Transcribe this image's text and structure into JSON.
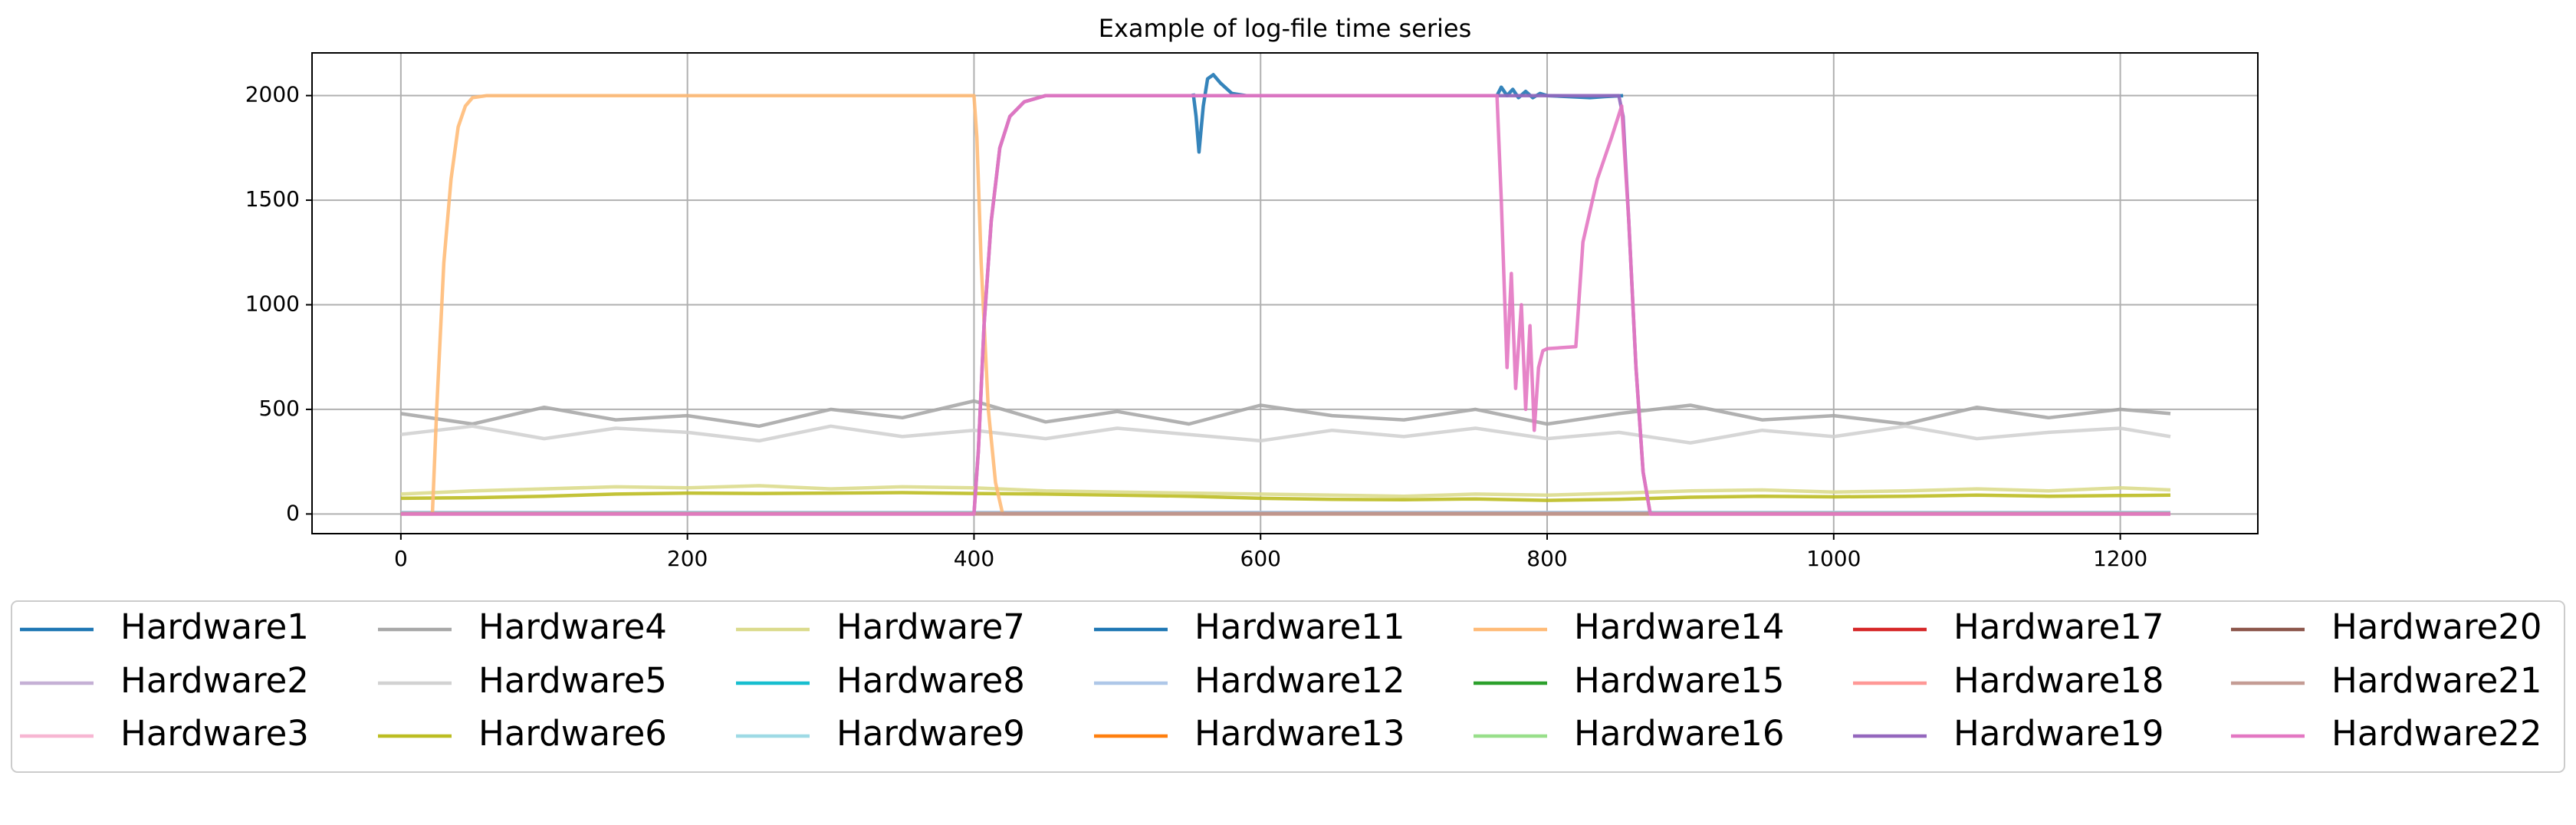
{
  "chart_data": {
    "type": "line",
    "title": "Example of log-file time series",
    "xlim": [
      -62,
      1296
    ],
    "ylim": [
      -94,
      2204
    ],
    "xticks": [
      0,
      200,
      400,
      600,
      800,
      1000,
      1200
    ],
    "yticks": [
      0,
      500,
      1000,
      1500,
      2000
    ],
    "grid": true,
    "legend": "bottom",
    "series": [
      {
        "name": "Hardware1",
        "color": "#1f77b4",
        "x": [
          0,
          1235
        ],
        "values": [
          2,
          2
        ]
      },
      {
        "name": "Hardware2",
        "color": "#c5b0d5",
        "x": [
          0,
          1235
        ],
        "values": [
          3,
          3
        ]
      },
      {
        "name": "Hardware3",
        "color": "#f7b6d2",
        "x": [
          0,
          1235
        ],
        "values": [
          4,
          4
        ]
      },
      {
        "name": "Hardware4",
        "color": "#a8a8a8",
        "x": [
          0,
          50,
          100,
          150,
          200,
          250,
          300,
          350,
          400,
          450,
          500,
          550,
          600,
          650,
          700,
          750,
          800,
          850,
          900,
          950,
          1000,
          1050,
          1100,
          1150,
          1200,
          1235
        ],
        "values": [
          480,
          430,
          510,
          450,
          470,
          420,
          500,
          460,
          540,
          440,
          490,
          430,
          520,
          470,
          450,
          500,
          430,
          480,
          520,
          450,
          470,
          430,
          510,
          460,
          500,
          480
        ]
      },
      {
        "name": "Hardware5",
        "color": "#d2d2d2",
        "x": [
          0,
          50,
          100,
          150,
          200,
          250,
          300,
          350,
          400,
          450,
          500,
          550,
          600,
          650,
          700,
          750,
          800,
          850,
          900,
          950,
          1000,
          1050,
          1100,
          1150,
          1200,
          1235
        ],
        "values": [
          380,
          420,
          360,
          410,
          390,
          350,
          420,
          370,
          400,
          360,
          410,
          380,
          350,
          400,
          370,
          410,
          360,
          390,
          340,
          400,
          370,
          420,
          360,
          390,
          410,
          370
        ]
      },
      {
        "name": "Hardware6",
        "color": "#bcbd22",
        "x": [
          0,
          50,
          100,
          150,
          200,
          250,
          300,
          350,
          400,
          450,
          500,
          550,
          600,
          650,
          700,
          750,
          800,
          850,
          900,
          950,
          1000,
          1050,
          1100,
          1150,
          1200,
          1235
        ],
        "values": [
          75,
          78,
          85,
          95,
          100,
          98,
          100,
          102,
          98,
          95,
          90,
          85,
          75,
          70,
          68,
          72,
          65,
          70,
          80,
          85,
          82,
          85,
          90,
          85,
          88,
          90
        ]
      },
      {
        "name": "Hardware7",
        "color": "#dbdb8d",
        "x": [
          0,
          50,
          100,
          150,
          200,
          250,
          300,
          350,
          400,
          450,
          500,
          550,
          600,
          650,
          700,
          750,
          800,
          850,
          900,
          950,
          1000,
          1050,
          1100,
          1150,
          1200,
          1235
        ],
        "values": [
          95,
          110,
          120,
          130,
          125,
          135,
          120,
          130,
          125,
          110,
          105,
          100,
          95,
          90,
          85,
          95,
          90,
          100,
          110,
          115,
          105,
          110,
          120,
          110,
          125,
          115
        ]
      },
      {
        "name": "Hardware8",
        "color": "#17becf",
        "x": [
          0,
          1235
        ],
        "values": [
          5,
          5
        ]
      },
      {
        "name": "Hardware9",
        "color": "#9edae5",
        "x": [
          0,
          1235
        ],
        "values": [
          6,
          6
        ]
      },
      {
        "name": "Hardware11",
        "color": "#1f77b4",
        "x": [
          553,
          555,
          557,
          560,
          563,
          567,
          572,
          580,
          590,
          765,
          768,
          772,
          776,
          780,
          785,
          790,
          795,
          800,
          830,
          840,
          853
        ],
        "values": [
          2010,
          1900,
          1730,
          1950,
          2080,
          2100,
          2060,
          2010,
          2000,
          2000,
          2040,
          2000,
          2030,
          1990,
          2020,
          1990,
          2010,
          2000,
          1990,
          1995,
          2000
        ]
      },
      {
        "name": "Hardware12",
        "color": "#aec7e8",
        "x": [
          0,
          1235
        ],
        "values": [
          7,
          7
        ]
      },
      {
        "name": "Hardware13",
        "color": "#ff7f0e",
        "x": [
          0,
          1235
        ],
        "values": [
          1,
          1
        ]
      },
      {
        "name": "Hardware14",
        "color": "#ffbb78",
        "x": [
          0,
          22,
          25,
          30,
          35,
          40,
          45,
          50,
          60,
          400,
          402,
          405,
          410,
          415,
          420,
          1235
        ],
        "values": [
          0,
          0,
          500,
          1200,
          1600,
          1850,
          1950,
          1990,
          2000,
          2000,
          1800,
          1200,
          500,
          150,
          0,
          0
        ]
      },
      {
        "name": "Hardware15",
        "color": "#2ca02c",
        "x": [
          0,
          1235
        ],
        "values": [
          1,
          1
        ]
      },
      {
        "name": "Hardware16",
        "color": "#98df8a",
        "x": [
          0,
          1235
        ],
        "values": [
          1,
          1
        ]
      },
      {
        "name": "Hardware17",
        "color": "#d62728",
        "x": [
          0,
          1235
        ],
        "values": [
          1,
          1
        ]
      },
      {
        "name": "Hardware18",
        "color": "#ff9896",
        "x": [
          0,
          1235
        ],
        "values": [
          1,
          1
        ]
      },
      {
        "name": "Hardware19",
        "color": "#9467bd",
        "x": [
          0,
          400,
          403,
          407,
          412,
          418,
          425,
          435,
          450,
          850,
          853,
          857,
          862,
          867,
          872,
          1235
        ],
        "values": [
          0,
          0,
          300,
          900,
          1400,
          1750,
          1900,
          1970,
          2000,
          2000,
          1900,
          1400,
          700,
          200,
          0,
          0
        ]
      },
      {
        "name": "Hardware20",
        "color": "#8c564b",
        "x": [
          0,
          1235
        ],
        "values": [
          1,
          1
        ]
      },
      {
        "name": "Hardware21",
        "color": "#c49c94",
        "x": [
          0,
          1235
        ],
        "values": [
          1,
          1
        ]
      },
      {
        "name": "Hardware22",
        "color": "#e377c2",
        "x": [
          0,
          400,
          403,
          407,
          412,
          418,
          425,
          435,
          450,
          765,
          768,
          772,
          775,
          778,
          782,
          785,
          788,
          791,
          794,
          797,
          800,
          820,
          825,
          835,
          845,
          852,
          857,
          862,
          867,
          872,
          1235
        ],
        "values": [
          0,
          0,
          300,
          900,
          1400,
          1750,
          1900,
          1970,
          2000,
          2000,
          1500,
          700,
          1150,
          600,
          1000,
          500,
          900,
          400,
          700,
          780,
          790,
          800,
          1300,
          1600,
          1800,
          1950,
          1400,
          700,
          200,
          0,
          0
        ]
      }
    ]
  }
}
